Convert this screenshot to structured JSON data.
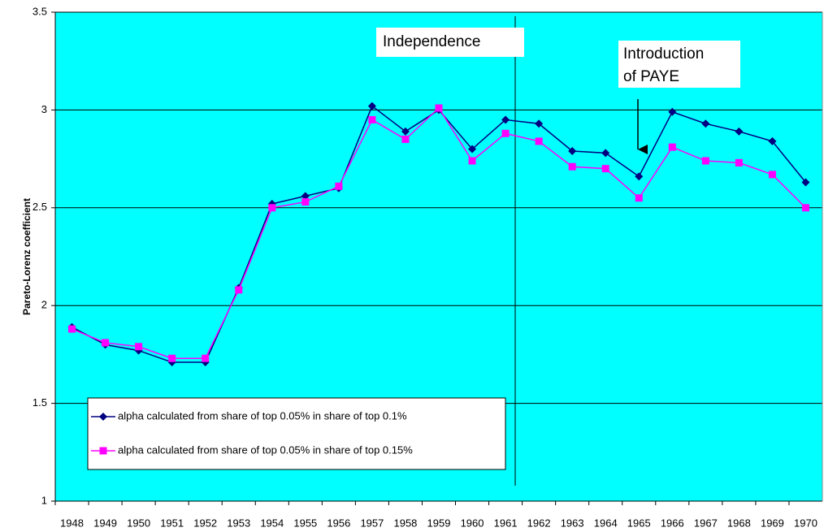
{
  "chart_data": {
    "type": "line",
    "y_label": "Pareto-Lorenz coefficient",
    "categories": [
      "1948",
      "1949",
      "1950",
      "1951",
      "1952",
      "1953",
      "1954",
      "1955",
      "1956",
      "1957",
      "1958",
      "1959",
      "1960",
      "1961",
      "1962",
      "1963",
      "1964",
      "1965",
      "1966",
      "1967",
      "1968",
      "1969",
      "1970"
    ],
    "series": [
      {
        "name": "alpha calculated from share of top 0.05% in share of top 0.1%",
        "color": "#000080",
        "marker": "diamond",
        "values": [
          1.89,
          1.8,
          1.77,
          1.71,
          1.71,
          2.09,
          2.52,
          2.56,
          2.6,
          3.02,
          2.89,
          3.0,
          2.8,
          2.95,
          2.93,
          2.79,
          2.78,
          2.66,
          2.99,
          2.93,
          2.89,
          2.84,
          2.63
        ]
      },
      {
        "name": "alpha calculated from share of top 0.05% in share of top 0.15%",
        "color": "#ff00ff",
        "marker": "square",
        "values": [
          1.88,
          1.81,
          1.79,
          1.73,
          1.73,
          2.08,
          2.5,
          2.53,
          2.61,
          2.95,
          2.85,
          3.01,
          2.74,
          2.88,
          2.84,
          2.71,
          2.7,
          2.55,
          2.81,
          2.74,
          2.73,
          2.67,
          2.5
        ]
      }
    ],
    "ylim": [
      1,
      3.5
    ],
    "yticks": [
      1,
      1.5,
      2,
      2.5,
      3,
      3.5
    ],
    "grid": true,
    "background": "#00ffff",
    "annotations": [
      [
        "Independence"
      ],
      [
        "Introduction",
        "of PAYE"
      ]
    ]
  }
}
